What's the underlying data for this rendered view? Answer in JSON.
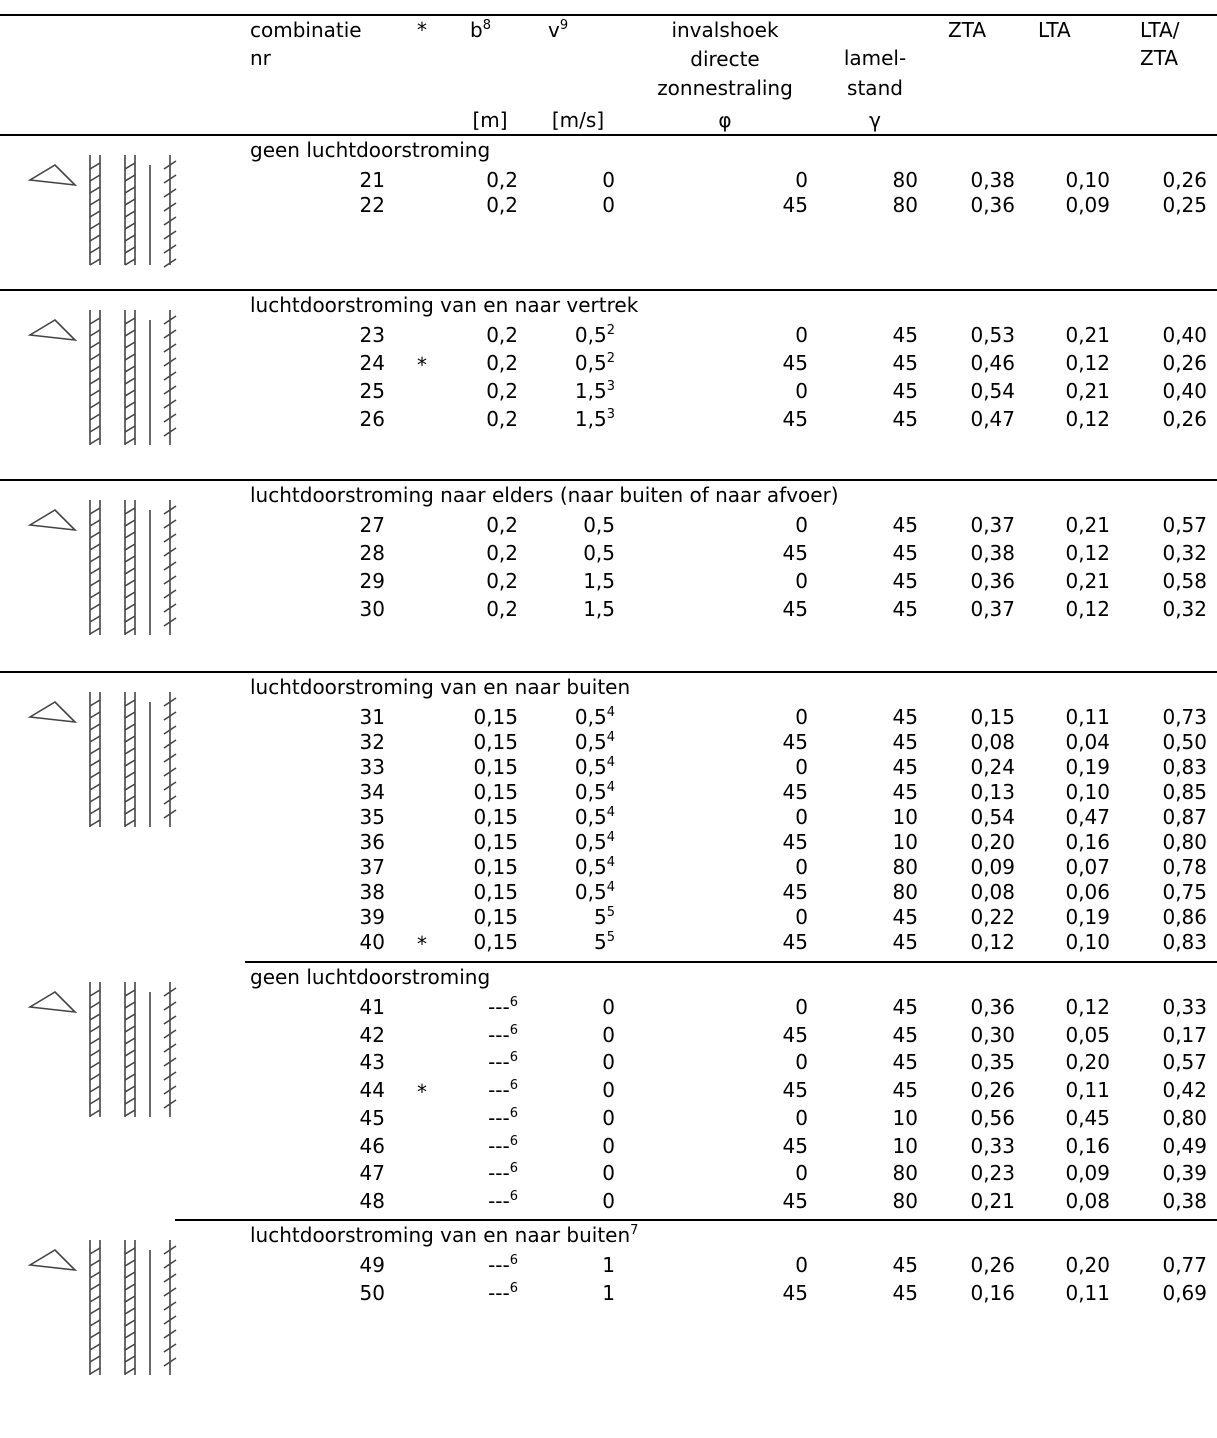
{
  "header": {
    "nr": [
      "combinatie",
      "nr"
    ],
    "star": "*",
    "b": "b",
    "b_sup": "8",
    "v": "v",
    "v_sup": "9",
    "phi": [
      "invalshoek",
      "directe",
      "zonnestraling"
    ],
    "gamma": [
      "lamel-",
      "stand"
    ],
    "zta": "ZTA",
    "lta": "LTA",
    "ratio": [
      "LTA/",
      "ZTA"
    ],
    "units": {
      "b": "[m]",
      "v": "[m/s]",
      "phi": "φ",
      "gamma": "γ"
    }
  },
  "sections": [
    {
      "title": "geen luchtdoorstroming",
      "rows": [
        {
          "nr": "21",
          "b": "0,2",
          "v": "0",
          "phi": "0",
          "gamma": "80",
          "zta": "0,38",
          "lta": "0,10",
          "ratio": "0,26"
        },
        {
          "nr": "22",
          "b": "0,2",
          "v": "0",
          "phi": "45",
          "gamma": "80",
          "zta": "0,36",
          "lta": "0,09",
          "ratio": "0,25"
        }
      ]
    },
    {
      "title": "luchtdoorstroming van en naar vertrek",
      "rows": [
        {
          "nr": "23",
          "b": "0,2",
          "v": "0,5",
          "v_sup": "2",
          "phi": "0",
          "gamma": "45",
          "zta": "0,53",
          "lta": "0,21",
          "ratio": "0,40"
        },
        {
          "nr": "24",
          "star": "*",
          "b": "0,2",
          "v": "0,5",
          "v_sup": "2",
          "phi": "45",
          "gamma": "45",
          "zta": "0,46",
          "lta": "0,12",
          "ratio": "0,26"
        },
        {
          "nr": "25",
          "b": "0,2",
          "v": "1,5",
          "v_sup": "3",
          "phi": "0",
          "gamma": "45",
          "zta": "0,54",
          "lta": "0,21",
          "ratio": "0,40"
        },
        {
          "nr": "26",
          "b": "0,2",
          "v": "1,5",
          "v_sup": "3",
          "phi": "45",
          "gamma": "45",
          "zta": "0,47",
          "lta": "0,12",
          "ratio": "0,26"
        }
      ]
    },
    {
      "title": "luchtdoorstroming naar elders (naar buiten of naar afvoer)",
      "rows": [
        {
          "nr": "27",
          "b": "0,2",
          "v": "0,5",
          "phi": "0",
          "gamma": "45",
          "zta": "0,37",
          "lta": "0,21",
          "ratio": "0,57"
        },
        {
          "nr": "28",
          "b": "0,2",
          "v": "0,5",
          "phi": "45",
          "gamma": "45",
          "zta": "0,38",
          "lta": "0,12",
          "ratio": "0,32"
        },
        {
          "nr": "29",
          "b": "0,2",
          "v": "1,5",
          "phi": "0",
          "gamma": "45",
          "zta": "0,36",
          "lta": "0,21",
          "ratio": "0,58"
        },
        {
          "nr": "30",
          "b": "0,2",
          "v": "1,5",
          "phi": "45",
          "gamma": "45",
          "zta": "0,37",
          "lta": "0,12",
          "ratio": "0,32"
        }
      ]
    },
    {
      "title": "luchtdoorstroming van en naar buiten",
      "rows": [
        {
          "nr": "31",
          "b": "0,15",
          "v": "0,5",
          "v_sup": "4",
          "phi": "0",
          "gamma": "45",
          "zta": "0,15",
          "lta": "0,11",
          "ratio": "0,73"
        },
        {
          "nr": "32",
          "b": "0,15",
          "v": "0,5",
          "v_sup": "4",
          "phi": "45",
          "gamma": "45",
          "zta": "0,08",
          "lta": "0,04",
          "ratio": "0,50"
        },
        {
          "nr": "33",
          "b": "0,15",
          "v": "0,5",
          "v_sup": "4",
          "phi": "0",
          "gamma": "45",
          "zta": "0,24",
          "lta": "0,19",
          "ratio": "0,83"
        },
        {
          "nr": "34",
          "b": "0,15",
          "v": "0,5",
          "v_sup": "4",
          "phi": "45",
          "gamma": "45",
          "zta": "0,13",
          "lta": "0,10",
          "ratio": "0,85"
        },
        {
          "nr": "35",
          "b": "0,15",
          "v": "0,5",
          "v_sup": "4",
          "phi": "0",
          "gamma": "10",
          "zta": "0,54",
          "lta": "0,47",
          "ratio": "0,87"
        },
        {
          "nr": "36",
          "b": "0,15",
          "v": "0,5",
          "v_sup": "4",
          "phi": "45",
          "gamma": "10",
          "zta": "0,20",
          "lta": "0,16",
          "ratio": "0,80"
        },
        {
          "nr": "37",
          "b": "0,15",
          "v": "0,5",
          "v_sup": "4",
          "phi": "0",
          "gamma": "80",
          "zta": "0,09",
          "lta": "0,07",
          "ratio": "0,78"
        },
        {
          "nr": "38",
          "b": "0,15",
          "v": "0,5",
          "v_sup": "4",
          "phi": "45",
          "gamma": "80",
          "zta": "0,08",
          "lta": "0,06",
          "ratio": "0,75"
        },
        {
          "nr": "39",
          "b": "0,15",
          "v": "5",
          "v_sup": "5",
          "phi": "0",
          "gamma": "45",
          "zta": "0,22",
          "lta": "0,19",
          "ratio": "0,86"
        },
        {
          "nr": "40",
          "star": "*",
          "b": "0,15",
          "v": "5",
          "v_sup": "5",
          "phi": "45",
          "gamma": "45",
          "zta": "0,12",
          "lta": "0,10",
          "ratio": "0,83"
        }
      ]
    },
    {
      "title": "geen luchtdoorstroming",
      "rows": [
        {
          "nr": "41",
          "b": "---",
          "b_sup": "6",
          "v": "0",
          "phi": "0",
          "gamma": "45",
          "zta": "0,36",
          "lta": "0,12",
          "ratio": "0,33"
        },
        {
          "nr": "42",
          "b": "---",
          "b_sup": "6",
          "v": "0",
          "phi": "45",
          "gamma": "45",
          "zta": "0,30",
          "lta": "0,05",
          "ratio": "0,17"
        },
        {
          "nr": "43",
          "b": "---",
          "b_sup": "6",
          "v": "0",
          "phi": "0",
          "gamma": "45",
          "zta": "0,35",
          "lta": "0,20",
          "ratio": "0,57"
        },
        {
          "nr": "44",
          "star": "*",
          "b": "---",
          "b_sup": "6",
          "v": "0",
          "phi": "45",
          "gamma": "45",
          "zta": "0,26",
          "lta": "0,11",
          "ratio": "0,42"
        },
        {
          "nr": "45",
          "b": "---",
          "b_sup": "6",
          "v": "0",
          "phi": "0",
          "gamma": "10",
          "zta": "0,56",
          "lta": "0,45",
          "ratio": "0,80"
        },
        {
          "nr": "46",
          "b": "---",
          "b_sup": "6",
          "v": "0",
          "phi": "45",
          "gamma": "10",
          "zta": "0,33",
          "lta": "0,16",
          "ratio": "0,49"
        },
        {
          "nr": "47",
          "b": "---",
          "b_sup": "6",
          "v": "0",
          "phi": "0",
          "gamma": "80",
          "zta": "0,23",
          "lta": "0,09",
          "ratio": "0,39"
        },
        {
          "nr": "48",
          "b": "---",
          "b_sup": "6",
          "v": "0",
          "phi": "45",
          "gamma": "80",
          "zta": "0,21",
          "lta": "0,08",
          "ratio": "0,38"
        }
      ]
    },
    {
      "title": "luchtdoorstroming van en naar buiten",
      "title_sup": "7",
      "rows": [
        {
          "nr": "49",
          "b": "---",
          "b_sup": "6",
          "v": "1",
          "phi": "0",
          "gamma": "45",
          "zta": "0,26",
          "lta": "0,20",
          "ratio": "0,77"
        },
        {
          "nr": "50",
          "b": "---",
          "b_sup": "6",
          "v": "1",
          "phi": "45",
          "gamma": "45",
          "zta": "0,16",
          "lta": "0,11",
          "ratio": "0,69"
        }
      ]
    }
  ]
}
